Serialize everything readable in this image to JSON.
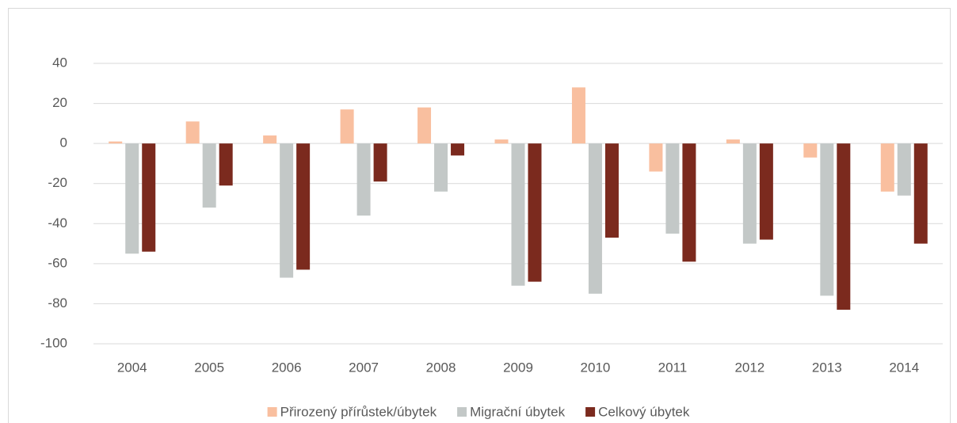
{
  "chart_data": {
    "type": "bar",
    "categories": [
      "2004",
      "2005",
      "2006",
      "2007",
      "2008",
      "2009",
      "2010",
      "2011",
      "2012",
      "2013",
      "2014"
    ],
    "series": [
      {
        "name": "Přirozený přírůstek/úbytek",
        "color": "#f9bf9f",
        "values": [
          1,
          11,
          4,
          17,
          18,
          2,
          28,
          -14,
          2,
          -7,
          -24
        ]
      },
      {
        "name": "Migrační úbytek",
        "color": "#c3c8c7",
        "values": [
          -55,
          -32,
          -67,
          -36,
          -24,
          -71,
          -75,
          -45,
          -50,
          -76,
          -26
        ]
      },
      {
        "name": "Celkový úbytek",
        "color": "#7b2a1e",
        "values": [
          -54,
          -21,
          -63,
          -19,
          -6,
          -69,
          -47,
          -59,
          -48,
          -83,
          -50
        ]
      }
    ],
    "ylim": [
      -100,
      40
    ],
    "yticks": [
      -100,
      -80,
      -60,
      -40,
      -20,
      0,
      20,
      40
    ],
    "grid": true,
    "legend": "bottom"
  }
}
